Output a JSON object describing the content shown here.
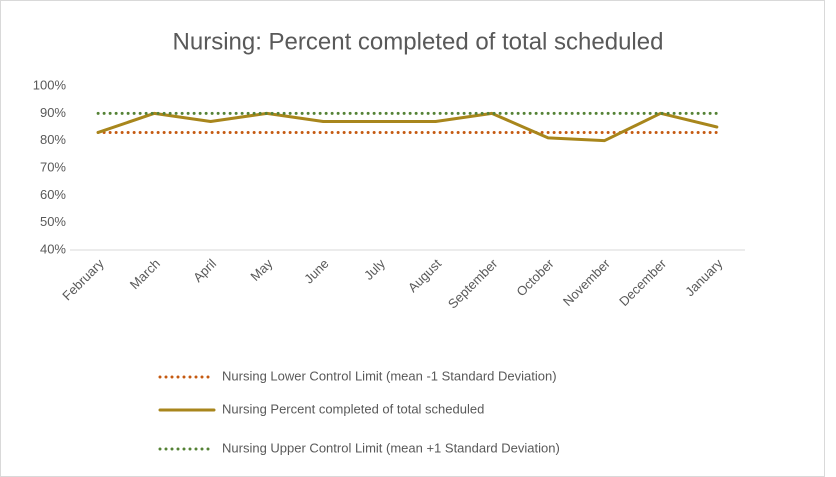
{
  "chart_data": {
    "type": "line",
    "title": "Nursing: Percent completed of total scheduled",
    "categories": [
      "February",
      "March",
      "April",
      "May",
      "June",
      "July",
      "August",
      "September",
      "October",
      "November",
      "December",
      "January"
    ],
    "series": [
      {
        "name": "Nursing Lower Control Limit (mean -1 Standard Deviation)",
        "color": "#c55a11",
        "dash": "dotted",
        "values": [
          83,
          83,
          83,
          83,
          83,
          83,
          83,
          83,
          83,
          83,
          83,
          83
        ]
      },
      {
        "name": "Nursing Percent completed of total scheduled",
        "color": "#a8861c",
        "dash": "solid",
        "values": [
          83,
          90,
          87,
          90,
          87,
          87,
          87,
          90,
          81,
          80,
          90,
          85
        ]
      },
      {
        "name": "Nursing Upper Control Limit (mean +1 Standard Deviation)",
        "color": "#548235",
        "dash": "dotted",
        "values": [
          90,
          90,
          90,
          90,
          90,
          90,
          90,
          90,
          90,
          90,
          90,
          90
        ]
      }
    ],
    "ylim": [
      40,
      100
    ],
    "yticks": [
      {
        "value": 40,
        "label": "40%"
      },
      {
        "value": 50,
        "label": "50%"
      },
      {
        "value": 60,
        "label": "60%"
      },
      {
        "value": 70,
        "label": "70%"
      },
      {
        "value": 80,
        "label": "80%"
      },
      {
        "value": 90,
        "label": "90%"
      },
      {
        "value": 100,
        "label": "100%"
      }
    ],
    "legend": "bottom"
  }
}
